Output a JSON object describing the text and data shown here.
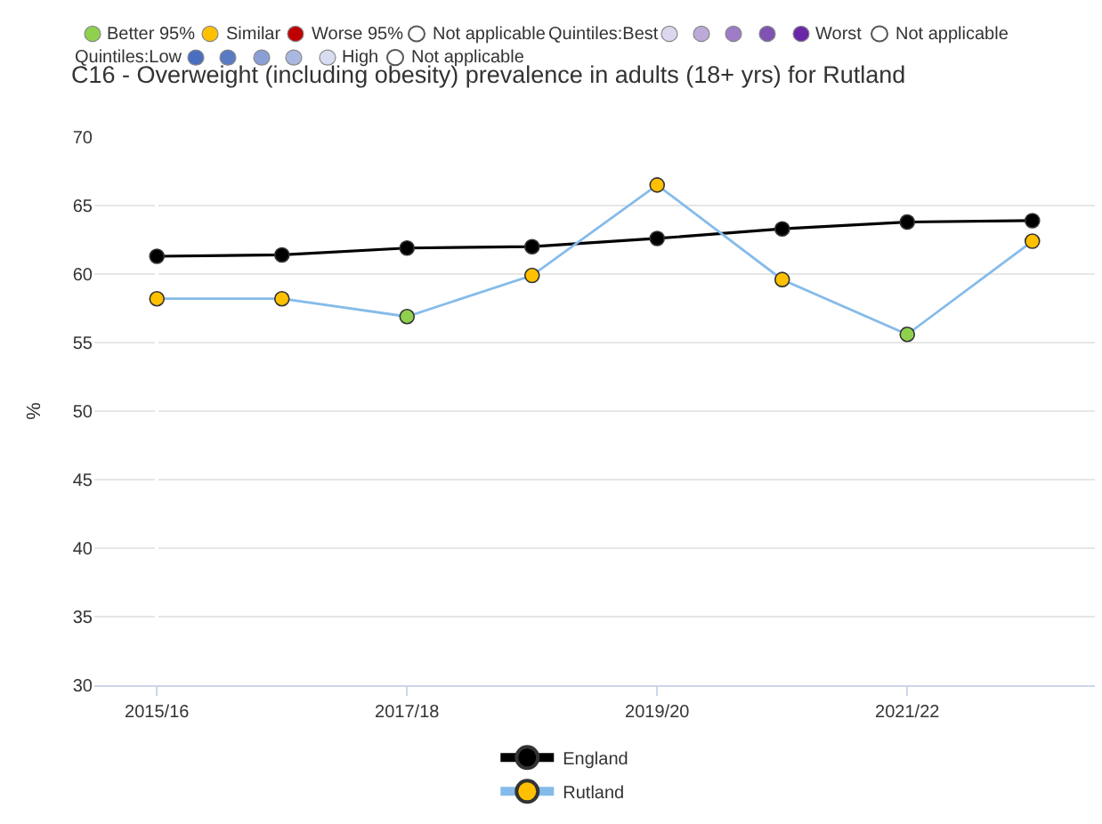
{
  "chart_data": {
    "type": "line",
    "title": "C16 - Overweight (including obesity) prevalence in adults (18+ yrs) for Rutland",
    "ylabel": "%",
    "categories": [
      "2015/16",
      null,
      "2017/18",
      null,
      "2019/20",
      null,
      "2021/22",
      null
    ],
    "series": [
      {
        "name": "England",
        "color": "#000000",
        "values": [
          61.3,
          61.4,
          61.9,
          62.0,
          62.6,
          63.3,
          63.8,
          63.9
        ]
      },
      {
        "name": "Rutland",
        "color": "#85bbea",
        "values": [
          58.2,
          58.2,
          56.9,
          59.9,
          66.5,
          59.6,
          55.6,
          62.4
        ],
        "colors": [
          "#ffc000",
          "#ffc000",
          "#8fd14f",
          "#ffc000",
          "#ffc000",
          "#ffc000",
          "#8fd14f",
          "#ffc000"
        ]
      }
    ],
    "ylim": [
      30,
      70
    ],
    "yticks": [
      30,
      35,
      40,
      45,
      50,
      55,
      60,
      65,
      70
    ],
    "grid": "y",
    "legend": "bottom",
    "marker": "circle",
    "line_style": "solid",
    "annotations": [
      "Better 95%",
      "Similar",
      "Worse 95%",
      "Not applicable",
      "Quintiles:Best",
      "Worst",
      "Not applicable",
      "Quintiles:Low",
      "High",
      "Not applicable"
    ]
  }
}
